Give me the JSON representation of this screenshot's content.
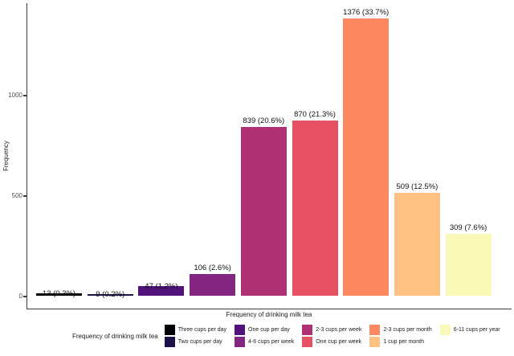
{
  "chart_data": {
    "type": "bar",
    "title": "",
    "xlabel": "Frequency of drinking milk tea",
    "ylabel": "Frequency",
    "y_ticks": [
      0,
      500,
      1000
    ],
    "ylim": [
      0,
      1450
    ],
    "grid": false,
    "categories": [
      "Three cups per day",
      "Two cups per day",
      "One cup per day",
      "4-6 cups per week",
      "2-3 cups per week",
      "One cup per week",
      "2-3 cups per month",
      "1 cup per month",
      "6-11 cups per year"
    ],
    "values": [
      13,
      9,
      47,
      106,
      839,
      870,
      1376,
      509,
      309
    ],
    "bar_labels": [
      "13 (0.3%)",
      "9 (0.2%)",
      "47 (1.2%)",
      "106 (2.6%)",
      "839 (20.6%)",
      "870 (21.3%)",
      "1376 (33.7%)",
      "509 (12.5%)",
      "309 (7.6%)"
    ],
    "colors": [
      "#000004",
      "#1D1147",
      "#51127C",
      "#822681",
      "#AF3174",
      "#E65164",
      "#FB8861",
      "#FDC182",
      "#FBF9B8"
    ],
    "legend": {
      "title": "Frequency of drinking milk tea",
      "position": "bottom",
      "rows": 2
    }
  }
}
